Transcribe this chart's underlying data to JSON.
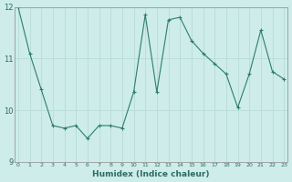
{
  "x": [
    0,
    1,
    2,
    3,
    4,
    5,
    6,
    7,
    8,
    9,
    10,
    11,
    12,
    13,
    14,
    15,
    16,
    17,
    18,
    19,
    20,
    21,
    22,
    23
  ],
  "y": [
    12.0,
    11.1,
    10.4,
    9.7,
    9.65,
    9.7,
    9.45,
    9.7,
    9.7,
    9.65,
    10.35,
    11.85,
    10.35,
    11.75,
    11.8,
    11.35,
    11.1,
    10.9,
    10.7,
    10.05,
    10.7,
    11.55,
    10.75,
    10.6
  ],
  "xlabel": "Humidex (Indice chaleur)",
  "ylim": [
    9,
    12
  ],
  "xlim": [
    -0.3,
    23.3
  ],
  "yticks": [
    9,
    10,
    11,
    12
  ],
  "xticks": [
    0,
    1,
    2,
    3,
    4,
    5,
    6,
    7,
    8,
    9,
    10,
    11,
    12,
    13,
    14,
    15,
    16,
    17,
    18,
    19,
    20,
    21,
    22,
    23
  ],
  "line_color": "#2e7d6e",
  "marker": "+",
  "bg_color": "#cdecea",
  "grid_color": "#b8dcd8",
  "label_color": "#2e6b60"
}
